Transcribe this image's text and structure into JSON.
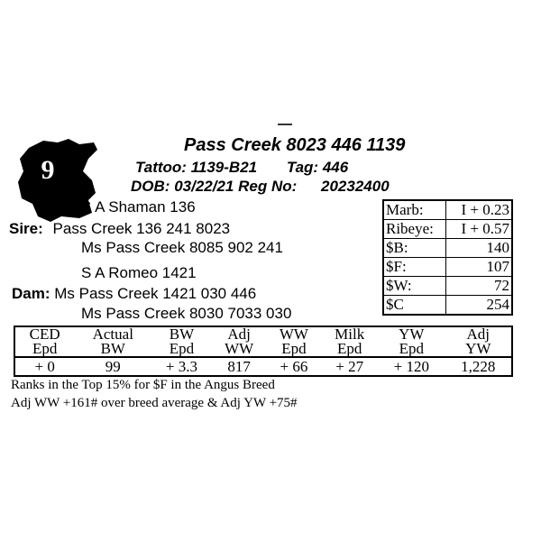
{
  "lot_number": "9",
  "title": "Pass Creek 8023 446 1139",
  "tattoo_label": "Tattoo:",
  "tattoo": "1139-B21",
  "tag_label": "Tag:",
  "tag": "446",
  "dob_label": "DOB:",
  "dob": "03/22/21",
  "reg_label": "Reg No:",
  "reg": "20232400",
  "sire_label": "Sire:",
  "sire": {
    "top": "S A Shaman 136",
    "name": "Pass Creek 136 241 8023",
    "bottom": "Ms Pass Creek 8085 902 241"
  },
  "dam_label": "Dam:",
  "dam": {
    "top": "S A Romeo 1421",
    "name": "Ms Pass Creek 1421 030 446",
    "bottom": "Ms Pass Creek 8030 7033 030"
  },
  "carcass": [
    {
      "label": "Marb:",
      "value": "I + 0.23"
    },
    {
      "label": "Ribeye:",
      "value": "I + 0.57"
    },
    {
      "label": "$B:",
      "value": "140"
    },
    {
      "label": "$F:",
      "value": "107"
    },
    {
      "label": "$W:",
      "value": "72"
    },
    {
      "label": "$C",
      "value": "254"
    }
  ],
  "epd": {
    "headers_top": [
      "CED",
      "Actual",
      "BW",
      "Adj",
      "WW",
      "Milk",
      "YW",
      "Adj"
    ],
    "headers_bottom": [
      "Epd",
      "BW",
      "Epd",
      "WW",
      "Epd",
      "Epd",
      "Epd",
      "YW"
    ],
    "values": [
      "+ 0",
      "99",
      "+ 3.3",
      "817",
      "+ 66",
      "+ 27",
      "+ 120",
      "1,228"
    ]
  },
  "notes": [
    "Ranks in the Top 15% for $F in the Angus Breed",
    "Adj WW +161# over breed average & Adj YW +75#"
  ]
}
